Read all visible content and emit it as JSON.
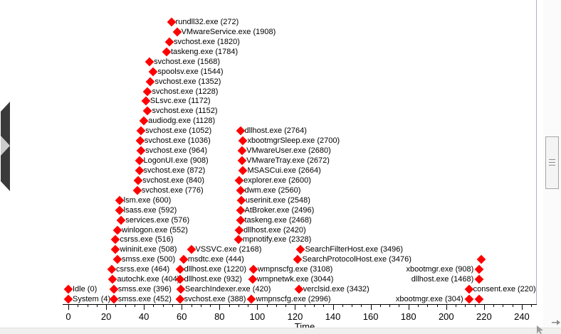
{
  "colors": {
    "marker": "#ff0000",
    "axis": "#000000",
    "boundary_line": "#b2aad4",
    "flyout_handle": "#3a3a3a",
    "flyout_chevron": "#cccccc",
    "scrollbar_border": "#a5a5a5",
    "scrollbar_fill": "#f4f4f4"
  },
  "icons": {
    "flyout": "chevron-right-icon",
    "scrollbar_grip": "grip-lines-icon",
    "pointer": "mouse-cursor-icon",
    "scroll_arrow": "arrow-right-icon"
  },
  "chart_data": {
    "type": "scatter",
    "marker_shape": "diamond",
    "grid": false,
    "legend": false,
    "x_axis": {
      "label": "Time",
      "major_ticks": [
        0,
        20,
        40,
        60,
        80,
        100,
        120,
        140,
        160,
        180,
        200,
        220,
        240
      ],
      "minor_tick_step": 5,
      "range": [
        0,
        248
      ]
    },
    "points": [
      {
        "label": "rundll32.exe (272)",
        "time": 54.5,
        "row": 0,
        "label_side": "right"
      },
      {
        "label": "VMwareService.exe (1908)",
        "time": 57.5,
        "row": 1,
        "label_side": "right"
      },
      {
        "label": "svchost.exe (1820)",
        "time": 53.5,
        "row": 2,
        "label_side": "right"
      },
      {
        "label": "taskeng.exe (1784)",
        "time": 52,
        "row": 3,
        "label_side": "right"
      },
      {
        "label": "svchost.exe (1568)",
        "time": 43,
        "row": 4,
        "label_side": "right"
      },
      {
        "label": "spoolsv.exe (1544)",
        "time": 45,
        "row": 5,
        "label_side": "right"
      },
      {
        "label": "svchost.exe (1352)",
        "time": 43.5,
        "row": 6,
        "label_side": "right"
      },
      {
        "label": "svchost.exe (1228)",
        "time": 42,
        "row": 7,
        "label_side": "right"
      },
      {
        "label": "SLsvc.exe (1172)",
        "time": 41,
        "row": 8,
        "label_side": "right"
      },
      {
        "label": "svchost.exe (1152)",
        "time": 42,
        "row": 9,
        "label_side": "right"
      },
      {
        "label": "audiodg.exe (1128)",
        "time": 40,
        "row": 10,
        "label_side": "right"
      },
      {
        "label": "svchost.exe (1052)",
        "time": 38.5,
        "row": 11,
        "label_side": "right"
      },
      {
        "label": "dllhost.exe (2764)",
        "time": 91,
        "row": 11,
        "label_side": "right"
      },
      {
        "label": "svchost.exe (1036)",
        "time": 38,
        "row": 12,
        "label_side": "right"
      },
      {
        "label": "xbootmgrSleep.exe (2700)",
        "time": 92.5,
        "row": 12,
        "label_side": "right"
      },
      {
        "label": "svchost.exe (964)",
        "time": 38.5,
        "row": 13,
        "label_side": "right"
      },
      {
        "label": "VMwareUser.exe (2680)",
        "time": 92,
        "row": 13,
        "label_side": "right"
      },
      {
        "label": "LogonUI.exe (908)",
        "time": 37.5,
        "row": 14,
        "label_side": "right"
      },
      {
        "label": "VMwareTray.exe (2672)",
        "time": 92,
        "row": 14,
        "label_side": "right"
      },
      {
        "label": "svchost.exe (872)",
        "time": 37.5,
        "row": 15,
        "label_side": "right"
      },
      {
        "label": "MSASCui.exe (2664)",
        "time": 92.5,
        "row": 15,
        "label_side": "right"
      },
      {
        "label": "svchost.exe (840)",
        "time": 37,
        "row": 16,
        "label_side": "right"
      },
      {
        "label": "explorer.exe (2600)",
        "time": 90.5,
        "row": 16,
        "label_side": "right"
      },
      {
        "label": "svchost.exe (776)",
        "time": 36.5,
        "row": 17,
        "label_side": "right"
      },
      {
        "label": "dwm.exe (2560)",
        "time": 91,
        "row": 17,
        "label_side": "right"
      },
      {
        "label": "lsm.exe (600)",
        "time": 27,
        "row": 18,
        "label_side": "right"
      },
      {
        "label": "userinit.exe (2548)",
        "time": 91.5,
        "row": 18,
        "label_side": "right"
      },
      {
        "label": "lsass.exe (592)",
        "time": 27,
        "row": 19,
        "label_side": "right"
      },
      {
        "label": "AtBroker.exe (2496)",
        "time": 91,
        "row": 19,
        "label_side": "right"
      },
      {
        "label": "services.exe (576)",
        "time": 28,
        "row": 20,
        "label_side": "right"
      },
      {
        "label": "taskeng.exe (2468)",
        "time": 91,
        "row": 20,
        "label_side": "right"
      },
      {
        "label": "winlogon.exe (552)",
        "time": 26,
        "row": 21,
        "label_side": "right"
      },
      {
        "label": "dllhost.exe (2420)",
        "time": 90.5,
        "row": 21,
        "label_side": "right"
      },
      {
        "label": "csrss.exe (516)",
        "time": 25,
        "row": 22,
        "label_side": "right"
      },
      {
        "label": "mpnotify.exe (2328)",
        "time": 90,
        "row": 22,
        "label_side": "right"
      },
      {
        "label": "wininit.exe (508)",
        "time": 25,
        "row": 23,
        "label_side": "right"
      },
      {
        "label": "VSSVC.exe (2168)",
        "time": 65,
        "row": 23,
        "label_side": "right"
      },
      {
        "label": "SearchFilterHost.exe (3496)",
        "time": 123,
        "row": 23,
        "label_side": "right"
      },
      {
        "label": "smss.exe (500)",
        "time": 26,
        "row": 24,
        "label_side": "right"
      },
      {
        "label": "msdtc.exe (444)",
        "time": 61,
        "row": 24,
        "label_side": "right"
      },
      {
        "label": "SearchProtocolHost.exe (3476)",
        "time": 121.5,
        "row": 24,
        "label_side": "right"
      },
      {
        "label": "",
        "time": 218.5,
        "row": 24,
        "label_side": "right"
      },
      {
        "label": "csrss.exe (464)",
        "time": 23,
        "row": 25,
        "label_side": "right"
      },
      {
        "label": "dllhost.exe (1220)",
        "time": 59,
        "row": 25,
        "label_side": "right"
      },
      {
        "label": "wmpnscfg.exe (3108)",
        "time": 98,
        "row": 25,
        "label_side": "right"
      },
      {
        "label": "xbootmgr.exe (908)",
        "time": 217.5,
        "row": 25,
        "label_side": "left"
      },
      {
        "label": "autochk.exe (404)",
        "time": 23.5,
        "row": 26,
        "label_side": "right"
      },
      {
        "label": "dllhost.exe (932)",
        "time": 59,
        "row": 26,
        "label_side": "right"
      },
      {
        "label": "wmpnetwk.exe (3044)",
        "time": 97.5,
        "row": 26,
        "label_side": "right"
      },
      {
        "label": "dllhost.exe (1468)",
        "time": 217.5,
        "row": 26,
        "label_side": "left"
      },
      {
        "label": "Idle (0)",
        "time": 0,
        "row": 27,
        "label_side": "right"
      },
      {
        "label": "smss.exe (396)",
        "time": 24,
        "row": 27,
        "label_side": "right"
      },
      {
        "label": "SearchIndexer.exe (420)",
        "time": 59.5,
        "row": 27,
        "label_side": "right"
      },
      {
        "label": "verclsid.exe (3432)",
        "time": 122,
        "row": 27,
        "label_side": "right"
      },
      {
        "label": "consent.exe (220)",
        "time": 212,
        "row": 27,
        "label_side": "right"
      },
      {
        "label": "System (4)",
        "time": 0,
        "row": 28,
        "label_side": "right"
      },
      {
        "label": "smss.exe (452)",
        "time": 24,
        "row": 28,
        "label_side": "right"
      },
      {
        "label": "svchost.exe (388)",
        "time": 59,
        "row": 28,
        "label_side": "right"
      },
      {
        "label": "wmpnscfg.exe (2996)",
        "time": 97,
        "row": 28,
        "label_side": "right"
      },
      {
        "label": "xbootmgr.exe (304)",
        "time": 212,
        "row": 28,
        "label_side": "left"
      },
      {
        "label": "",
        "time": 217.5,
        "row": 28,
        "label_side": "right"
      }
    ]
  }
}
